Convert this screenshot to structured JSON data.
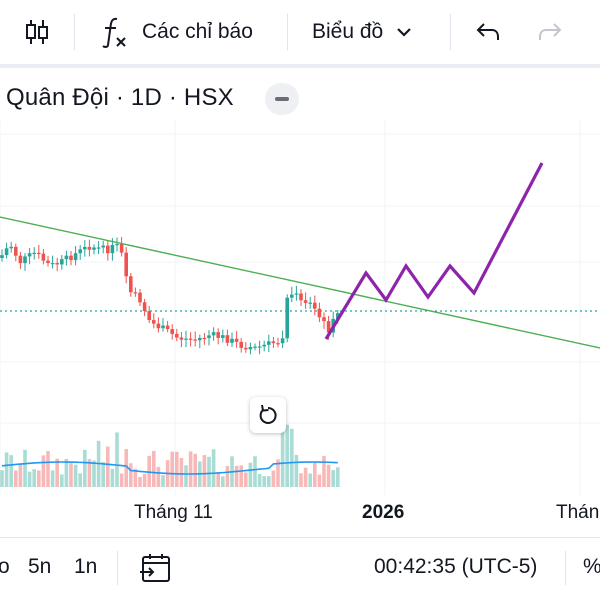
{
  "toolbar": {
    "indicators_label": "Các chỉ báo",
    "chart_type_label": "Biểu đồ"
  },
  "symbol": {
    "title": "Quân Đội · 1D · HSX"
  },
  "colors": {
    "up": "#26a69a",
    "down": "#ef5350",
    "trendline": "#4caf50",
    "projection": "#8e24aa",
    "volume_ma": "#2196f3",
    "price_line": "#26a69a"
  },
  "x_axis": {
    "labels": [
      "Tháng 11",
      "2026",
      "Tháng"
    ]
  },
  "bottom_bar": {
    "timeframe_partial": "o",
    "timeframes": [
      "5n",
      "1n"
    ],
    "clock": "00:42:35 (UTC-5)",
    "percent_partial": "%"
  },
  "icons": {
    "candles": "candlestick-icon",
    "indicators": "function-icon",
    "chevron": "chevron-down-icon",
    "undo": "undo-icon",
    "redo": "redo-icon",
    "collapse": "minus-icon",
    "reset": "reset-icon",
    "goto_date": "calendar-arrow-icon"
  }
}
